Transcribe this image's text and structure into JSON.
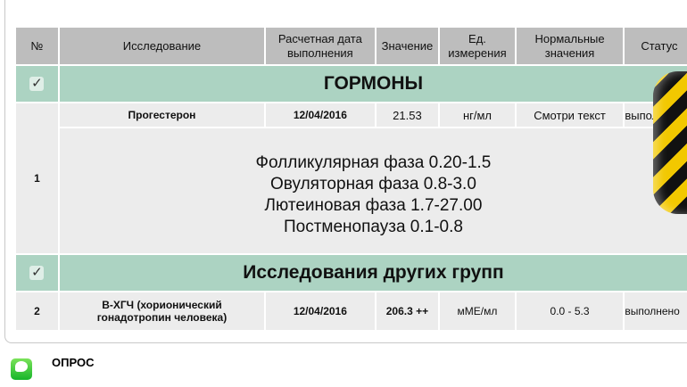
{
  "table": {
    "headers": [
      "№",
      "Исследование",
      "Расчетная дата выполнения",
      "Значение",
      "Ед. измерения",
      "Нормальные значения",
      "Статус"
    ],
    "groups": [
      {
        "title": "ГОРМОНЫ",
        "rows": [
          {
            "num": "1",
            "name": "Прогестерон",
            "date": "12/04/2016",
            "value": "21.53",
            "unit": "нг/мл",
            "normal": "Смотри текст",
            "status": "выполнено",
            "note": [
              "Фолликулярная фаза 0.20-1.5",
              "Овуляторная фаза 0.8-3.0",
              "Лютеиновая фаза 1.7-27.00",
              "Постменопауза 0.1-0.8"
            ]
          }
        ]
      },
      {
        "title": "Исследования других групп",
        "rows": [
          {
            "num": "2",
            "name": "B-ХГЧ (хорионический гонадотропин человека)",
            "date": "12/04/2016",
            "value": "206.3 ++",
            "unit": "мМЕ/мл",
            "normal": "0.0 - 5.3",
            "status": "выполнено"
          }
        ]
      }
    ]
  },
  "footer": {
    "section_label": "ОПРОС"
  },
  "colors": {
    "header": "#bdbdbd",
    "group": "#acd3c2",
    "row": "#ececec"
  }
}
